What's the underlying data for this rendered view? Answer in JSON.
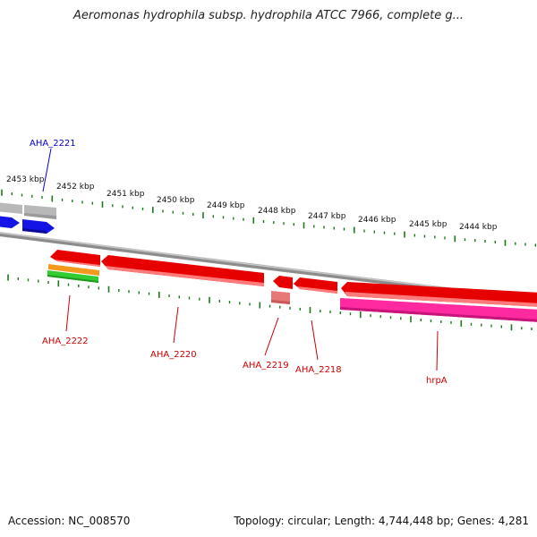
{
  "title": "Aeromonas hydrophila subsp. hydrophila ATCC 7966, complete g...",
  "accession": "Accession: NC_008570",
  "summary": "Topology: circular; Length: 4,744,448 bp; Genes: 4,281",
  "ticks": [
    "2453 kbp",
    "2452 kbp",
    "2451 kbp",
    "2450 kbp",
    "2449 kbp",
    "2448 kbp",
    "2447 kbp",
    "2446 kbp",
    "2445 kbp",
    "2444 kbp"
  ],
  "colors": {
    "backbone": "#8c8c8c",
    "tick": "#1a7a1a",
    "cds_forward": "#1414e6",
    "cds_reverse": "#e60000",
    "gene_grey": "#b8b8b8",
    "orange": "#f39a1e",
    "green": "#33cc33",
    "pink": "#ff2aa0",
    "salmon": "#e87878",
    "label_forward": "#0000cc",
    "label_reverse": "#cc0000"
  },
  "genes": [
    {
      "name": "AHA_2221",
      "strand": "forward"
    },
    {
      "name": "AHA_2222",
      "strand": "reverse"
    },
    {
      "name": "AHA_2220",
      "strand": "reverse"
    },
    {
      "name": "AHA_2219",
      "strand": "reverse"
    },
    {
      "name": "AHA_2218",
      "strand": "reverse"
    },
    {
      "name": "hrpA",
      "strand": "reverse"
    }
  ]
}
